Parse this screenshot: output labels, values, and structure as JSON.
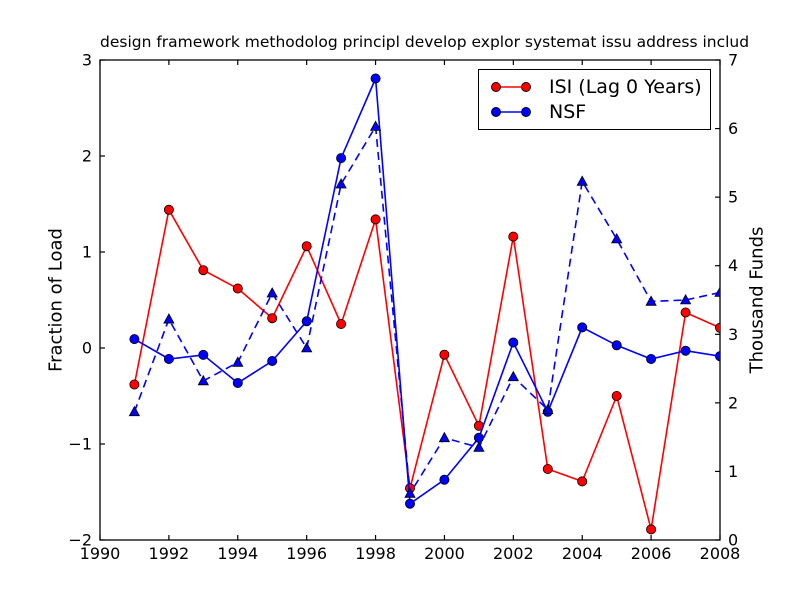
{
  "title": "design framework methodolog principl develop explor systemat issu address includ",
  "legend": {
    "position": "upper right",
    "entries": [
      {
        "label": "ISI (Lag 0 Years)",
        "color": "#ff0000",
        "marker": "circle",
        "line": "solid"
      },
      {
        "label": "NSF",
        "color": "#0000ff",
        "marker": "circle",
        "line": "solid"
      }
    ]
  },
  "colors": {
    "isi": "#ff0000",
    "nsf": "#0000ff",
    "frame": "#000000",
    "background": "#ffffff"
  },
  "chart_data": {
    "type": "line",
    "title": "design framework methodolog principl develop explor systemat issu address includ",
    "x": [
      1991,
      1992,
      1993,
      1994,
      1995,
      1996,
      1997,
      1998,
      1999,
      2000,
      2001,
      2002,
      2003,
      2004,
      2005,
      2006,
      2007,
      2008
    ],
    "x_ticks": [
      1990,
      1992,
      1994,
      1996,
      1998,
      2000,
      2002,
      2004,
      2006,
      2008
    ],
    "x_range": [
      1990,
      2008
    ],
    "grid": false,
    "left_axis": {
      "label": "Fraction of Load",
      "range": [
        -2,
        3
      ],
      "ticks": [
        3,
        2,
        1,
        0,
        -1,
        -2
      ]
    },
    "right_axis": {
      "label": "Thousand Funds",
      "range": [
        0,
        7
      ],
      "ticks": [
        0,
        1,
        2,
        3,
        4,
        5,
        6,
        7
      ]
    },
    "series": [
      {
        "name": "ISI (Lag 0 Years)",
        "axis": "left",
        "color": "#ff0000",
        "line": "solid",
        "marker": "circle",
        "values": [
          -0.38,
          1.44,
          0.81,
          0.62,
          0.31,
          1.06,
          0.25,
          1.34,
          -1.46,
          -0.07,
          -0.81,
          1.16,
          -1.26,
          -1.39,
          -0.5,
          -1.89,
          0.37,
          0.21
        ]
      },
      {
        "name": "NSF",
        "axis": "right",
        "color": "#0000ff",
        "line": "solid",
        "marker": "circle",
        "values": [
          2.93,
          2.64,
          2.7,
          2.29,
          2.61,
          3.19,
          5.57,
          6.73,
          0.53,
          0.88,
          1.49,
          2.88,
          1.87,
          3.1,
          2.84,
          2.64,
          2.76,
          2.68
        ]
      },
      {
        "name": "NSF (dashed triangle series, unlabeled in legend)",
        "axis": "right",
        "color": "#0000ff",
        "line": "dashed",
        "marker": "triangle",
        "values": [
          1.87,
          3.22,
          2.32,
          2.59,
          3.6,
          2.8,
          5.19,
          6.03,
          0.68,
          1.49,
          1.35,
          2.38,
          1.9,
          5.23,
          4.39,
          3.48,
          3.5,
          3.61
        ]
      }
    ]
  }
}
